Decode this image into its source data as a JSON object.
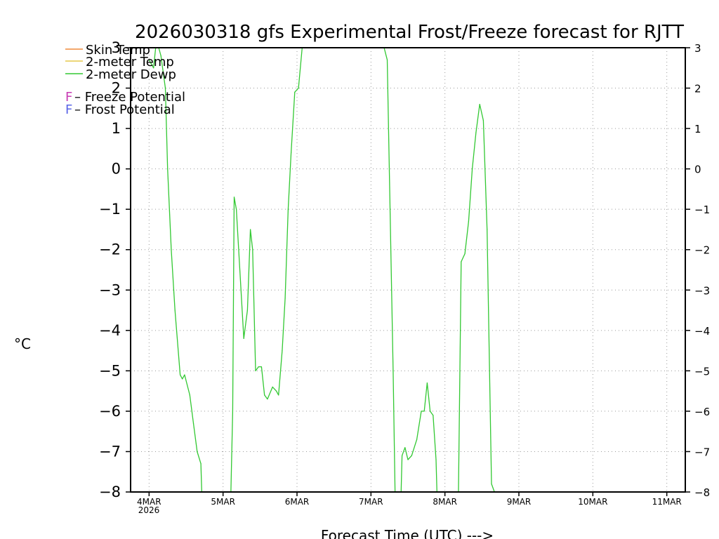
{
  "chart_data": {
    "type": "line",
    "title": "2026030318 gfs Experimental Frost/Freeze forecast for RJTT",
    "xlabel": "Forecast Time (UTC) --->",
    "ylabel": "°C",
    "ylim": [
      -8,
      3
    ],
    "xlim": [
      3.75,
      11.25
    ],
    "y_ticks": [
      3,
      2,
      1,
      0,
      -1,
      -2,
      -3,
      -4,
      -5,
      -6,
      -7,
      -8
    ],
    "y_tick_labels_left": [
      "3",
      "2",
      "1",
      "0",
      "−1",
      "−2",
      "−3",
      "−4",
      "−5",
      "−6",
      "−7",
      "−8"
    ],
    "y_tick_labels_right": [
      "3",
      "2",
      "1",
      "0",
      "−1",
      "−2",
      "−3",
      "−4",
      "−5",
      "−6",
      "−7",
      "−8"
    ],
    "x_ticks": [
      4,
      5,
      6,
      7,
      8,
      9,
      10,
      11
    ],
    "x_tick_labels": [
      "4MAR",
      "5MAR",
      "6MAR",
      "7MAR",
      "8MAR",
      "9MAR",
      "10MAR",
      "11MAR"
    ],
    "x_year_label": "2026",
    "grid": true,
    "legend": [
      {
        "name": "Skin Temp",
        "color": "#f08c3c"
      },
      {
        "name": "2-meter Temp",
        "color": "#e6c84b"
      },
      {
        "name": "2-meter Dewp",
        "color": "#32c832"
      }
    ],
    "potential_legend": [
      {
        "symbol": "F",
        "text": " – Freeze Potential",
        "color": "#c83cb4"
      },
      {
        "symbol": "F",
        "text": " – Frost Potential",
        "color": "#5a64e6"
      }
    ],
    "series": [
      {
        "name": "2-meter Dewp",
        "color": "#32c832",
        "points": [
          [
            4.0,
            2.7
          ],
          [
            4.06,
            2.5
          ],
          [
            4.1,
            3.2
          ],
          [
            4.16,
            2.8
          ],
          [
            4.22,
            2.0
          ],
          [
            4.25,
            0.0
          ],
          [
            4.3,
            -2.0
          ],
          [
            4.35,
            -3.5
          ],
          [
            4.42,
            -5.1
          ],
          [
            4.45,
            -5.2
          ],
          [
            4.48,
            -5.1
          ],
          [
            4.55,
            -5.6
          ],
          [
            4.6,
            -6.3
          ],
          [
            4.65,
            -7.0
          ],
          [
            4.7,
            -7.3
          ],
          [
            4.72,
            -8.5
          ],
          [
            5.1,
            -8.5
          ],
          [
            5.13,
            -6.0
          ],
          [
            5.15,
            -0.7
          ],
          [
            5.18,
            -1.0
          ],
          [
            5.28,
            -4.2
          ],
          [
            5.33,
            -3.5
          ],
          [
            5.37,
            -1.5
          ],
          [
            5.4,
            -2.0
          ],
          [
            5.44,
            -5.0
          ],
          [
            5.48,
            -4.9
          ],
          [
            5.52,
            -4.9
          ],
          [
            5.56,
            -5.6
          ],
          [
            5.6,
            -5.7
          ],
          [
            5.67,
            -5.4
          ],
          [
            5.72,
            -5.5
          ],
          [
            5.75,
            -5.6
          ],
          [
            5.8,
            -4.5
          ],
          [
            5.84,
            -3.2
          ],
          [
            5.88,
            -1.0
          ],
          [
            5.92,
            0.4
          ],
          [
            5.97,
            1.9
          ],
          [
            6.02,
            2.0
          ],
          [
            6.08,
            3.2
          ],
          [
            7.15,
            3.2
          ],
          [
            7.22,
            2.7
          ],
          [
            7.3,
            -5.0
          ],
          [
            7.33,
            -8.5
          ],
          [
            7.4,
            -8.5
          ],
          [
            7.42,
            -7.1
          ],
          [
            7.46,
            -6.9
          ],
          [
            7.5,
            -7.2
          ],
          [
            7.55,
            -7.1
          ],
          [
            7.62,
            -6.7
          ],
          [
            7.68,
            -6.0
          ],
          [
            7.72,
            -6.0
          ],
          [
            7.76,
            -5.3
          ],
          [
            7.8,
            -6.0
          ],
          [
            7.84,
            -6.1
          ],
          [
            7.88,
            -7.2
          ],
          [
            7.9,
            -8.5
          ],
          [
            8.18,
            -8.5
          ],
          [
            8.22,
            -2.3
          ],
          [
            8.27,
            -2.1
          ],
          [
            8.32,
            -1.3
          ],
          [
            8.37,
            0.0
          ],
          [
            8.42,
            0.9
          ],
          [
            8.47,
            1.6
          ],
          [
            8.52,
            1.2
          ],
          [
            8.57,
            -1.5
          ],
          [
            8.63,
            -7.8
          ],
          [
            8.67,
            -8.0
          ]
        ]
      }
    ]
  }
}
